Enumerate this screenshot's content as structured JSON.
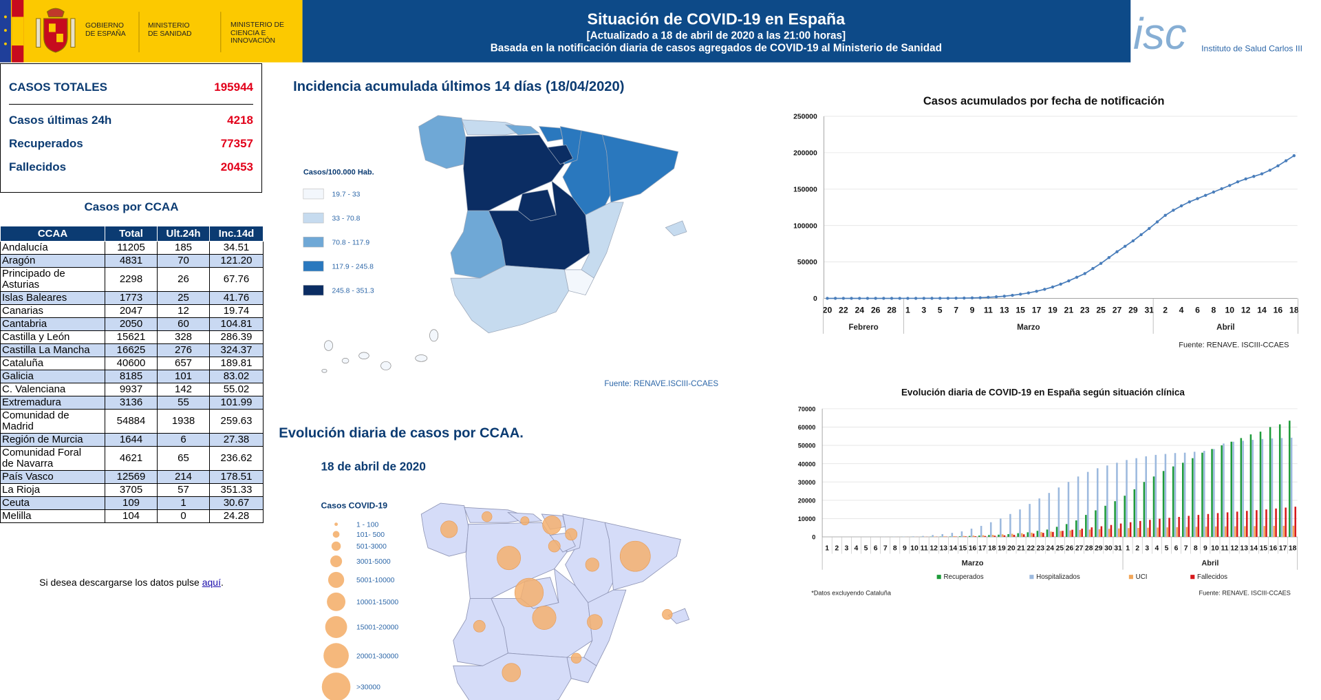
{
  "header": {
    "logos": [
      "GOBIERNO DE ESPAÑA",
      "MINISTERIO DE SANIDAD",
      "MINISTERIO DE CIENCIA E INNOVACIÓN"
    ],
    "title": "Situación de COVID-19 en España",
    "updated": "[Actualizado a 18 de abril de 2020 a las 21:00 horas]",
    "basis": "Basada en la notificación diaria de casos agregados de COVID-19 al Ministerio de Sanidad",
    "institute_logo": "isc",
    "institute": "Instituto de Salud Carlos III"
  },
  "summary": [
    {
      "label": "CASOS TOTALES",
      "value": "195944"
    },
    {
      "label": "Casos últimas 24h",
      "value": "4218"
    },
    {
      "label": "Recuperados",
      "value": "77357"
    },
    {
      "label": "Fallecidos",
      "value": "20453"
    }
  ],
  "table": {
    "title": "Casos por CCAA",
    "columns": [
      "CCAA",
      "Total",
      "Ult.24h",
      "Inc.14d"
    ],
    "rows": [
      [
        "Andalucía",
        "11205",
        "185",
        "34.51"
      ],
      [
        "Aragón",
        "4831",
        "70",
        "121.20"
      ],
      [
        "Principado de Asturias",
        "2298",
        "26",
        "67.76"
      ],
      [
        "Islas Baleares",
        "1773",
        "25",
        "41.76"
      ],
      [
        "Canarias",
        "2047",
        "12",
        "19.74"
      ],
      [
        "Cantabria",
        "2050",
        "60",
        "104.81"
      ],
      [
        "Castilla y León",
        "15621",
        "328",
        "286.39"
      ],
      [
        "Castilla La Mancha",
        "16625",
        "276",
        "324.37"
      ],
      [
        "Cataluña",
        "40600",
        "657",
        "189.81"
      ],
      [
        "Galicia",
        "8185",
        "101",
        "83.02"
      ],
      [
        "C. Valenciana",
        "9937",
        "142",
        "55.02"
      ],
      [
        "Extremadura",
        "3136",
        "55",
        "101.99"
      ],
      [
        "Comunidad de Madrid",
        "54884",
        "1938",
        "259.63"
      ],
      [
        "Región de Murcia",
        "1644",
        "6",
        "27.38"
      ],
      [
        "Comunidad Foral de Navarra",
        "4621",
        "65",
        "236.62"
      ],
      [
        "País Vasco",
        "12569",
        "214",
        "178.51"
      ],
      [
        "La Rioja",
        "3705",
        "57",
        "351.33"
      ],
      [
        "Ceuta",
        "109",
        "1",
        "30.67"
      ],
      [
        "Melilla",
        "104",
        "0",
        "24.28"
      ]
    ]
  },
  "download": {
    "text": "Si desea descargarse los datos pulse ",
    "link": "aquí",
    "end": "."
  },
  "incidence_map": {
    "title": "Incidencia acumulada últimos 14 días (18/04/2020)",
    "legend_title": "Casos/100.000 Hab.",
    "legend": [
      {
        "label": "19.7 - 33",
        "color": "#f3f7fc"
      },
      {
        "label": "33 - 70.8",
        "color": "#c6dbef"
      },
      {
        "label": "70.8 - 117.9",
        "color": "#6fa8d6"
      },
      {
        "label": "117.9 - 245.8",
        "color": "#2a78be"
      },
      {
        "label": "245.8 - 351.3",
        "color": "#0b2d63"
      }
    ],
    "source": "Fuente: RENAVE.ISCIII-CCAES"
  },
  "bubble_map": {
    "title": "Evolución diaria de casos por CCAA.",
    "date": "18 de abril de 2020",
    "legend_title": "Casos COVID-19",
    "legend": [
      "1 - 100",
      "101- 500",
      "501-3000",
      "3001-5000",
      "5001-10000",
      "10001-15000",
      "15001-20000",
      "20001-30000",
      ">30000"
    ]
  },
  "chart_data": [
    {
      "type": "line",
      "title": "Casos acumulados por fecha de notificación",
      "categories": [
        20,
        null,
        22,
        null,
        24,
        null,
        26,
        null,
        28,
        null,
        1,
        null,
        3,
        null,
        5,
        null,
        7,
        null,
        9,
        null,
        11,
        null,
        13,
        null,
        15,
        null,
        17,
        null,
        19,
        null,
        21,
        null,
        23,
        null,
        25,
        null,
        27,
        null,
        29,
        null,
        31,
        null,
        2,
        null,
        4,
        null,
        6,
        null,
        8,
        null,
        10,
        null,
        12,
        null,
        14,
        null,
        16,
        null,
        18
      ],
      "month_labels": [
        "Febrero",
        "Marzo",
        "Abril"
      ],
      "values": [
        0,
        0,
        0,
        0,
        1,
        2,
        3,
        6,
        10,
        15,
        20,
        35,
        55,
        80,
        120,
        180,
        270,
        400,
        600,
        900,
        1400,
        2100,
        3000,
        4200,
        5700,
        7500,
        9700,
        12400,
        15600,
        19500,
        24000,
        29000,
        34000,
        41000,
        48000,
        56000,
        64000,
        71500,
        79000,
        87500,
        96000,
        105000,
        114000,
        121000,
        127000,
        132500,
        137000,
        141500,
        146000,
        150500,
        155000,
        160000,
        164000,
        167500,
        171000,
        176000,
        182000,
        189000,
        195944
      ],
      "color": "#4a7ebb",
      "ylim": [
        0,
        250000
      ],
      "yticks": [
        0,
        50000,
        100000,
        150000,
        200000,
        250000
      ],
      "grid": true,
      "source": "Fuente: RENAVE. ISCIII-CCAES"
    },
    {
      "type": "bar",
      "title": "Evolución diaria de COVID-19 en España según situación clínica",
      "categories": [
        1,
        2,
        3,
        4,
        5,
        6,
        7,
        8,
        9,
        10,
        11,
        12,
        13,
        14,
        15,
        16,
        17,
        18,
        19,
        20,
        21,
        22,
        23,
        24,
        25,
        26,
        27,
        28,
        29,
        30,
        31,
        1,
        2,
        3,
        4,
        5,
        6,
        7,
        8,
        9,
        10,
        11,
        12,
        13,
        14,
        15,
        16,
        17,
        18
      ],
      "month_labels": [
        "Marzo",
        "Abril"
      ],
      "series": [
        {
          "name": "Recuperados",
          "color": "#1e9b3a",
          "values": [
            0,
            0,
            0,
            0,
            0,
            0,
            0,
            10,
            20,
            30,
            50,
            100,
            150,
            200,
            300,
            500,
            700,
            1000,
            1200,
            1500,
            2000,
            2500,
            3300,
            4000,
            5500,
            7000,
            9000,
            12000,
            14500,
            17000,
            19500,
            22500,
            26000,
            30000,
            33000,
            36000,
            38500,
            40500,
            43000,
            46000,
            48000,
            50000,
            52000,
            54000,
            56000,
            57500,
            60000,
            61500,
            63500
          ]
        },
        {
          "name": "Hospitalizados",
          "color": "#9cb9de",
          "values": [
            0,
            5,
            10,
            20,
            40,
            60,
            100,
            150,
            200,
            300,
            500,
            1000,
            1500,
            2200,
            3000,
            4500,
            6000,
            8000,
            10000,
            12500,
            15000,
            18000,
            21000,
            24000,
            27000,
            30000,
            33000,
            35500,
            37500,
            39000,
            40500,
            42000,
            43000,
            44000,
            44800,
            45300,
            45800,
            46000,
            46500,
            47000,
            48000,
            51000,
            52000,
            52500,
            53000,
            53500,
            53800,
            54000,
            54200
          ]
        },
        {
          "name": "UCI",
          "color": "#f2a65a",
          "values": [
            0,
            0,
            0,
            0,
            2,
            5,
            10,
            20,
            30,
            50,
            100,
            200,
            300,
            400,
            500,
            700,
            900,
            1100,
            1400,
            1700,
            2000,
            2300,
            2600,
            2900,
            3200,
            3500,
            3800,
            4000,
            4200,
            4400,
            4600,
            4800,
            4900,
            5000,
            5100,
            5200,
            5300,
            5400,
            5500,
            5600,
            5700,
            5750,
            5800,
            5850,
            5900,
            5950,
            6000,
            6050,
            6100
          ]
        },
        {
          "name": "Fallecidos",
          "color": "#d7191c",
          "values": [
            0,
            0,
            0,
            1,
            2,
            3,
            5,
            10,
            20,
            30,
            50,
            80,
            120,
            180,
            280,
            350,
            500,
            650,
            850,
            1100,
            1400,
            1800,
            2200,
            2700,
            3300,
            3900,
            4500,
            5200,
            5800,
            6500,
            7300,
            8000,
            8700,
            9300,
            9900,
            10400,
            10900,
            11500,
            12000,
            12500,
            13000,
            13400,
            13800,
            14200,
            14600,
            15000,
            15500,
            16000,
            16500
          ]
        }
      ],
      "ylim": [
        0,
        70000
      ],
      "yticks": [
        0,
        10000,
        20000,
        30000,
        40000,
        50000,
        60000,
        70000
      ],
      "grid": true,
      "note": "*Datos excluyendo Cataluña",
      "source": "Fuente: RENAVE. ISCIII-CCAES"
    }
  ]
}
